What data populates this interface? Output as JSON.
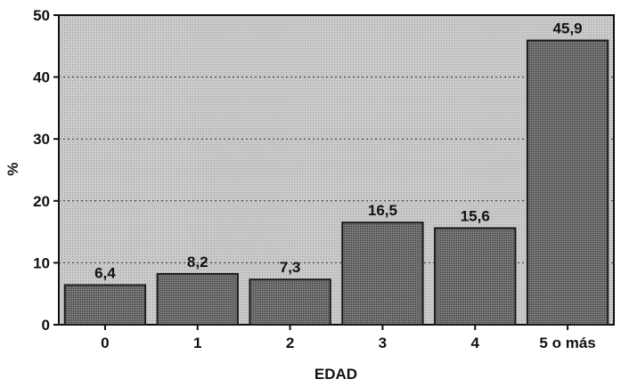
{
  "chart_data": {
    "type": "bar",
    "categories": [
      "0",
      "1",
      "2",
      "3",
      "4",
      "5 o más"
    ],
    "values": [
      6.4,
      8.2,
      7.3,
      16.5,
      15.6,
      45.9
    ],
    "data_labels": [
      "6,4",
      "8,2",
      "7,3",
      "16,5",
      "15,6",
      "45,9"
    ],
    "title": "",
    "xlabel": "EDAD",
    "ylabel": "%",
    "ylim": [
      0,
      50
    ],
    "yticks": [
      0,
      10,
      20,
      30,
      40,
      50
    ],
    "grid": "horizontal dotted",
    "legend": "none",
    "colors": {
      "plot_background": "#c8c8c8",
      "bar_fill": "#6e6e6e",
      "bar_stroke": "#1a1a1a",
      "gridline": "#333333"
    }
  }
}
